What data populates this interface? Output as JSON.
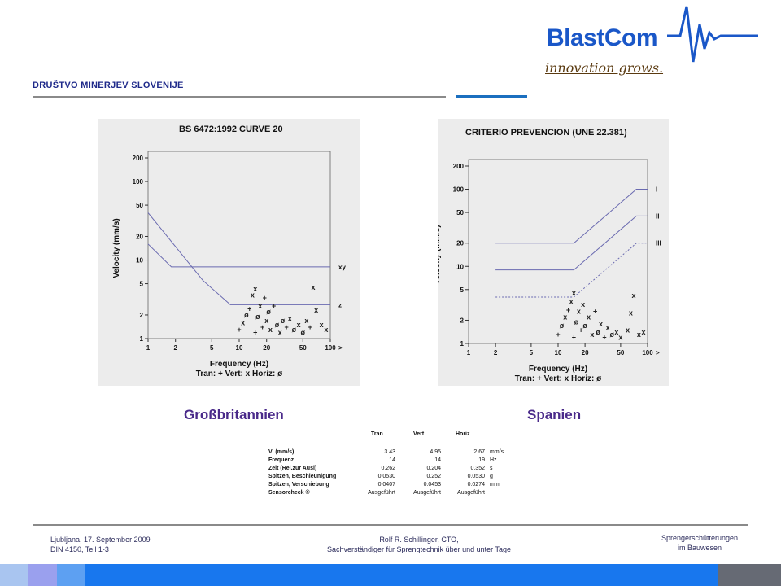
{
  "header": {
    "org": "DRUŠTVO MINERJEV SLOVENIJE",
    "logo_text": "BlastCom",
    "tagline": "innovation grows."
  },
  "captions": {
    "left": "Großbritannien",
    "right": "Spanien"
  },
  "colors": {
    "org": "#1f2a8a",
    "logo": "#1a57c8",
    "caption": "#4a2a8a",
    "bar": "#1877ee",
    "line": "#6a6ab0"
  },
  "chart_data": [
    {
      "type": "line",
      "title": "BS 6472:1992 CURVE 20",
      "xlabel": "Frequency (Hz)",
      "ylabel": "Velocity (mm/s)",
      "legend_text": "Tran: +  Vert: x  Horiz: ø",
      "x_scale": "log",
      "y_scale": "log",
      "xlim": [
        1,
        100
      ],
      "ylim": [
        1,
        200
      ],
      "x_ticks": [
        1,
        2,
        5,
        10,
        20,
        50,
        100
      ],
      "y_ticks": [
        1,
        2,
        5,
        10,
        20,
        50,
        100,
        200
      ],
      "series": [
        {
          "name": "xy",
          "points": [
            [
              1,
              16
            ],
            [
              1.8,
              8.2
            ],
            [
              100,
              8.2
            ]
          ]
        },
        {
          "name": "z",
          "points": [
            [
              1,
              40
            ],
            [
              4,
              5.5
            ],
            [
              8,
              2.7
            ],
            [
              100,
              2.7
            ]
          ]
        }
      ],
      "points": [
        [
          10,
          1.3,
          "+"
        ],
        [
          11,
          1.6,
          "x"
        ],
        [
          12,
          2.0,
          "ø"
        ],
        [
          13,
          2.4,
          "+"
        ],
        [
          14,
          3.6,
          "x"
        ],
        [
          15,
          1.2,
          "+"
        ],
        [
          15,
          4.3,
          "x"
        ],
        [
          16,
          1.9,
          "ø"
        ],
        [
          17,
          2.6,
          "x"
        ],
        [
          18,
          1.4,
          "+"
        ],
        [
          19,
          3.3,
          "+"
        ],
        [
          20,
          1.7,
          "x"
        ],
        [
          21,
          2.2,
          "ø"
        ],
        [
          22,
          1.3,
          "x"
        ],
        [
          24,
          2.6,
          "+"
        ],
        [
          26,
          1.5,
          "ø"
        ],
        [
          28,
          1.2,
          "x"
        ],
        [
          30,
          1.7,
          "ø"
        ],
        [
          33,
          1.4,
          "+"
        ],
        [
          36,
          1.8,
          "x"
        ],
        [
          40,
          1.3,
          "ø"
        ],
        [
          45,
          1.5,
          "x"
        ],
        [
          50,
          1.2,
          "ø"
        ],
        [
          55,
          1.7,
          "x"
        ],
        [
          60,
          1.4,
          "+"
        ],
        [
          65,
          4.5,
          "x"
        ],
        [
          70,
          2.3,
          "x"
        ],
        [
          80,
          1.5,
          "x"
        ],
        [
          90,
          1.3,
          "x"
        ]
      ]
    },
    {
      "type": "line",
      "title": "CRITERIO PREVENCION (UNE 22.381)",
      "xlabel": "Frequency (Hz)",
      "ylabel": "Velocity (mm/s)",
      "legend_text": "Tran: +  Vert: x  Horiz: ø",
      "x_scale": "log",
      "y_scale": "log",
      "xlim": [
        1,
        100
      ],
      "ylim": [
        1,
        200
      ],
      "x_ticks": [
        1,
        2,
        5,
        10,
        20,
        50,
        100
      ],
      "y_ticks": [
        1,
        2,
        5,
        10,
        20,
        50,
        100,
        200
      ],
      "series": [
        {
          "name": "I",
          "points": [
            [
              2,
              20
            ],
            [
              15,
              20
            ],
            [
              75,
              100
            ],
            [
              100,
              100
            ]
          ]
        },
        {
          "name": "II",
          "points": [
            [
              2,
              9
            ],
            [
              15,
              9
            ],
            [
              75,
              45
            ],
            [
              100,
              45
            ]
          ]
        },
        {
          "name": "III",
          "points": [
            [
              2,
              4
            ],
            [
              15,
              4
            ],
            [
              75,
              20
            ],
            [
              100,
              20
            ]
          ]
        }
      ],
      "points": [
        [
          10,
          1.3,
          "+"
        ],
        [
          11,
          1.7,
          "ø"
        ],
        [
          12,
          2.2,
          "x"
        ],
        [
          13,
          2.7,
          "+"
        ],
        [
          14,
          3.5,
          "x"
        ],
        [
          15,
          1.2,
          "+"
        ],
        [
          15,
          4.5,
          "x"
        ],
        [
          16,
          1.9,
          "ø"
        ],
        [
          17,
          2.6,
          "x"
        ],
        [
          18,
          1.5,
          "+"
        ],
        [
          19,
          3.2,
          "x"
        ],
        [
          20,
          1.7,
          "ø"
        ],
        [
          22,
          2.2,
          "x"
        ],
        [
          24,
          1.3,
          "x"
        ],
        [
          26,
          2.6,
          "+"
        ],
        [
          28,
          1.4,
          "ø"
        ],
        [
          30,
          1.8,
          "x"
        ],
        [
          33,
          1.2,
          "+"
        ],
        [
          36,
          1.6,
          "x"
        ],
        [
          40,
          1.3,
          "ø"
        ],
        [
          45,
          1.4,
          "x"
        ],
        [
          50,
          1.2,
          "x"
        ],
        [
          60,
          1.5,
          "x"
        ],
        [
          65,
          2.5,
          "x"
        ],
        [
          70,
          4.2,
          "x"
        ],
        [
          80,
          1.3,
          "x"
        ],
        [
          90,
          1.4,
          "x"
        ]
      ]
    }
  ],
  "table": {
    "headers": [
      "Tran",
      "Vert",
      "Horiz"
    ],
    "rows": [
      {
        "label": "Vi (mm/s)",
        "values": [
          "3.43",
          "4.95",
          "2.67"
        ],
        "unit": "mm/s"
      },
      {
        "label": "Frequenz",
        "values": [
          "14",
          "14",
          "19"
        ],
        "unit": "Hz"
      },
      {
        "label": "Zeit (Rel.zur Ausl)",
        "values": [
          "0.262",
          "0.204",
          "0.352"
        ],
        "unit": "s"
      },
      {
        "label": "Spitzen, Beschleunigung",
        "values": [
          "0.0530",
          "0.252",
          "0.0530"
        ],
        "unit": "g"
      },
      {
        "label": "Spitzen, Verschiebung",
        "values": [
          "0.0407",
          "0.0453",
          "0.0274"
        ],
        "unit": "mm"
      },
      {
        "label": "Sensorcheck ®",
        "values": [
          "Ausgeführt",
          "Ausgeführt",
          "Ausgeführt"
        ],
        "unit": ""
      }
    ]
  },
  "footer": {
    "left_line1": "Ljubljana, 17. September 2009",
    "left_line2": "DIN 4150, Teil 1-3",
    "mid_line1": "Rolf R. Schillinger, CTO,",
    "mid_line2": "Sachverständiger für Sprengtechnik über und unter Tage",
    "right_line1": "Sprengerschütterungen",
    "right_line2": "im Bauwesen"
  }
}
